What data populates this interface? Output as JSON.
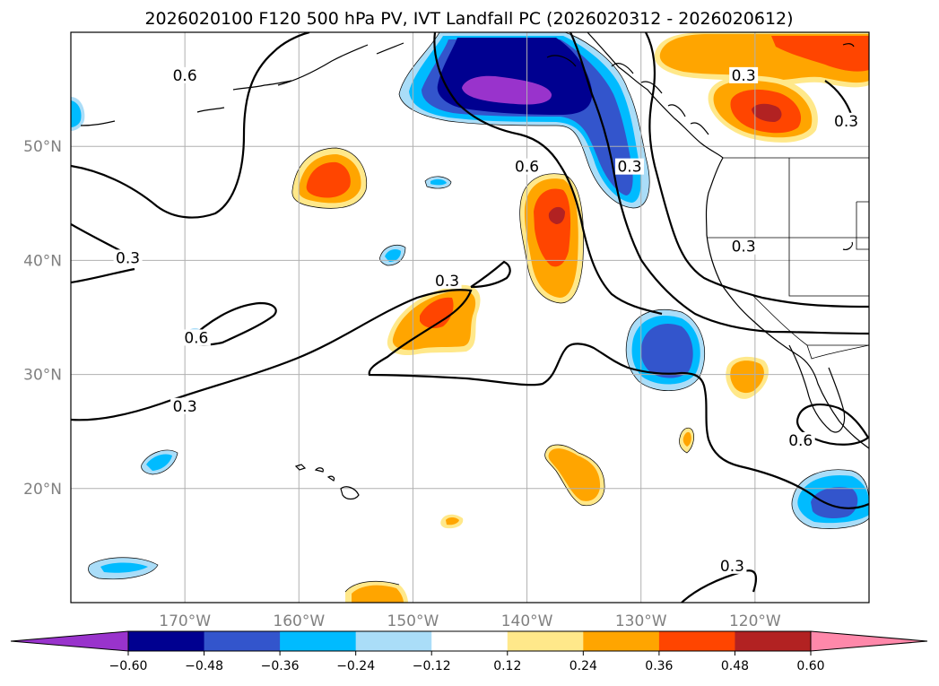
{
  "chart_data": {
    "type": "contour-map",
    "title": "2026020100 F120 500 hPa PV, IVT Landfall PC (2026020312 - 2026020612)",
    "map": {
      "lon_range": [
        -180,
        -110
      ],
      "lat_range": [
        10,
        60
      ],
      "lon_ticks": [
        {
          "value": -170,
          "label": "170°W"
        },
        {
          "value": -160,
          "label": "160°W"
        },
        {
          "value": -150,
          "label": "150°W"
        },
        {
          "value": -140,
          "label": "140°W"
        },
        {
          "value": -130,
          "label": "130°W"
        },
        {
          "value": -120,
          "label": "120°W"
        }
      ],
      "lat_ticks": [
        {
          "value": 20,
          "label": "20°N"
        },
        {
          "value": 30,
          "label": "30°N"
        },
        {
          "value": 40,
          "label": "40°N"
        },
        {
          "value": 50,
          "label": "50°N"
        }
      ],
      "grid": true
    },
    "colorbar": {
      "levels": [
        -0.6,
        -0.48,
        -0.36,
        -0.24,
        -0.12,
        0.12,
        0.24,
        0.36,
        0.48,
        0.6
      ],
      "tick_labels": [
        "−0.60",
        "−0.48",
        "−0.36",
        "−0.24",
        "−0.12",
        "0.12",
        "0.24",
        "0.36",
        "0.48",
        "0.60"
      ],
      "colors": [
        "#9933cc",
        "#000090",
        "#3355cc",
        "#00bbff",
        "#aaddf8",
        "#ffffff",
        "#ffe88a",
        "#ffa500",
        "#ff4500",
        "#b22222",
        "#ff88aa"
      ],
      "extend": "both"
    },
    "contour_levels": [
      0.3,
      0.6
    ],
    "contour_labels": [
      {
        "text": "0.6",
        "lon": -170,
        "lat": 56
      },
      {
        "text": "0.3",
        "lon": -175,
        "lat": 40
      },
      {
        "text": "0.6",
        "lon": -169,
        "lat": 33
      },
      {
        "text": "0.3",
        "lon": -170,
        "lat": 27
      },
      {
        "text": "0.3",
        "lon": -147,
        "lat": 38
      },
      {
        "text": "0.6",
        "lon": -140,
        "lat": 48
      },
      {
        "text": "0.3",
        "lon": -131,
        "lat": 48
      },
      {
        "text": "0.3",
        "lon": -121,
        "lat": 56
      },
      {
        "text": "0.3",
        "lon": -112,
        "lat": 52
      },
      {
        "text": "0.3",
        "lon": -121,
        "lat": 41
      },
      {
        "text": "0.6",
        "lon": -116,
        "lat": 24
      },
      {
        "text": "0.3",
        "lon": -122,
        "lat": 13
      }
    ],
    "shaded_features": [
      {
        "sign": "negative",
        "peak": -0.6,
        "lon": -141,
        "lat": 55
      },
      {
        "sign": "negative",
        "peak": -0.36,
        "lon": -130,
        "lat": 49
      },
      {
        "sign": "negative",
        "peak": -0.36,
        "lon": -128,
        "lat": 32
      },
      {
        "sign": "negative",
        "peak": -0.36,
        "lon": -115,
        "lat": 19
      },
      {
        "sign": "positive",
        "peak": 0.48,
        "lon": -117,
        "lat": 54
      },
      {
        "sign": "positive",
        "peak": 0.36,
        "lon": -116,
        "lat": 58
      },
      {
        "sign": "positive",
        "peak": 0.48,
        "lon": -138,
        "lat": 43
      },
      {
        "sign": "positive",
        "peak": 0.36,
        "lon": -158,
        "lat": 47
      },
      {
        "sign": "positive",
        "peak": 0.36,
        "lon": -148,
        "lat": 35
      },
      {
        "sign": "positive",
        "peak": 0.24,
        "lon": -136,
        "lat": 22
      },
      {
        "sign": "positive",
        "peak": 0.24,
        "lon": -122,
        "lat": 30
      }
    ]
  }
}
